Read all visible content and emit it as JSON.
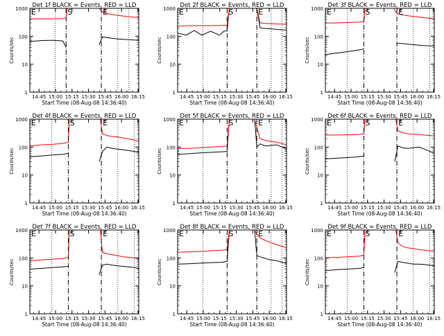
{
  "figure": {
    "ylabel": "Counts/sec",
    "xlabel": "Start Time (08-Aug-08 14:36:40)",
    "x_ticks": [
      "14:45",
      "15:00",
      "15:15",
      "15:30",
      "15:45",
      "16:00",
      "16:15"
    ],
    "y_ticks": [
      "1",
      "10",
      "100",
      "1000"
    ],
    "marker_labels": [
      "E",
      "S",
      "E"
    ],
    "colors": {
      "events": "#000000",
      "lld": "#ff0000",
      "markers": "#000000"
    }
  },
  "chart_data": [
    {
      "type": "line",
      "panel": "Det 1f",
      "title": "Det 1f BLACK = Events, RED = LLD",
      "x_unit": "minutes after 14:36:40",
      "ylim": [
        1,
        1000
      ],
      "log_y": true,
      "markers": [
        {
          "label": "E",
          "x": 0,
          "style": "dotted"
        },
        {
          "label": "S",
          "x": 33,
          "style": "dashed"
        },
        {
          "label": "E",
          "x": 65,
          "style": "dashed"
        }
      ],
      "dotted_lines": [
        0,
        23,
        33,
        65,
        80,
        90
      ],
      "series": [
        {
          "name": "Events",
          "color": "#000000",
          "x": [
            0,
            10,
            20,
            30,
            33,
            36,
            40,
            45,
            50,
            55,
            60,
            63,
            66,
            70,
            75,
            80,
            85,
            90,
            95,
            99
          ],
          "y": [
            65,
            70,
            72,
            68,
            40,
            null,
            null,
            null,
            null,
            null,
            null,
            50,
            95,
            90,
            85,
            80,
            78,
            75,
            73,
            72
          ]
        },
        {
          "name": "LLD",
          "color": "#ff0000",
          "x": [
            0,
            10,
            20,
            30,
            33,
            34,
            36,
            62,
            63,
            66,
            70,
            75,
            80,
            85,
            90,
            95,
            99
          ],
          "y": [
            420,
            420,
            420,
            430,
            450,
            1000,
            1000,
            1000,
            1000,
            750,
            650,
            600,
            560,
            530,
            500,
            480,
            470
          ]
        }
      ]
    },
    {
      "type": "line",
      "panel": "Det 2f",
      "title": "Det 2f BLACK = Events, RED = LLD",
      "x_unit": "minutes after 14:36:40",
      "ylim": [
        1,
        1000
      ],
      "log_y": true,
      "markers": [
        {
          "label": "E",
          "x": 0,
          "style": "dotted"
        },
        {
          "label": "S",
          "x": 45,
          "style": "dashed"
        },
        {
          "label": "E",
          "x": 72,
          "style": "dashed"
        }
      ],
      "dotted_lines": [
        0,
        23,
        45,
        72,
        85,
        95
      ],
      "series": [
        {
          "name": "Events",
          "color": "#000000",
          "x": [
            0,
            8,
            15,
            22,
            30,
            38,
            42,
            45,
            47,
            50,
            70,
            72,
            75,
            80,
            85,
            90,
            95,
            99
          ],
          "y": [
            130,
            110,
            160,
            110,
            150,
            110,
            150,
            160,
            1000,
            1000,
            1000,
            1000,
            200,
            190,
            185,
            175,
            170,
            165
          ]
        },
        {
          "name": "LLD",
          "color": "#ff0000",
          "x": [
            0,
            10,
            20,
            30,
            40,
            45,
            47,
            50,
            70,
            72,
            75,
            80,
            85,
            90,
            95,
            99
          ],
          "y": [
            230,
            240,
            240,
            240,
            245,
            250,
            1000,
            1000,
            1000,
            1000,
            300,
            290,
            280,
            275,
            270,
            265
          ]
        }
      ]
    },
    {
      "type": "line",
      "panel": "Det 3f",
      "title": "Det 3f BLACK = Events, RED = LLD",
      "x_unit": "minutes after 14:36:40",
      "ylim": [
        1,
        1000
      ],
      "log_y": true,
      "markers": [
        {
          "label": "E",
          "x": 0,
          "style": "dotted"
        },
        {
          "label": "S",
          "x": 35,
          "style": "dashed"
        },
        {
          "label": "E",
          "x": 65,
          "style": "dashed"
        }
      ],
      "dotted_lines": [
        0,
        20,
        35,
        65,
        80,
        95
      ],
      "series": [
        {
          "name": "Events",
          "color": "#000000",
          "x": [
            0,
            10,
            20,
            30,
            35,
            36,
            62,
            65,
            70,
            75,
            80,
            85,
            90,
            95,
            99
          ],
          "y": [
            22,
            25,
            28,
            32,
            35,
            null,
            null,
            55,
            55,
            52,
            50,
            48,
            46,
            45,
            45
          ]
        },
        {
          "name": "LLD",
          "color": "#ff0000",
          "x": [
            0,
            10,
            20,
            30,
            35,
            36,
            62,
            65,
            70,
            75,
            80,
            85,
            90,
            95,
            99
          ],
          "y": [
            300,
            300,
            310,
            320,
            330,
            1000,
            1000,
            650,
            580,
            540,
            510,
            490,
            460,
            440,
            420
          ]
        }
      ]
    },
    {
      "type": "line",
      "panel": "Det 4f",
      "title": "Det 4f BLACK = Events, RED = LLD",
      "x_unit": "minutes after 14:36:40",
      "ylim": [
        1,
        1000
      ],
      "log_y": true,
      "markers": [
        {
          "label": "E",
          "x": 0,
          "style": "dotted"
        },
        {
          "label": "S",
          "x": 35,
          "style": "dashed"
        },
        {
          "label": "E",
          "x": 65,
          "style": "dashed"
        }
      ],
      "dotted_lines": [
        0,
        20,
        35,
        65,
        80,
        95
      ],
      "series": [
        {
          "name": "Events",
          "color": "#000000",
          "x": [
            0,
            10,
            20,
            30,
            35,
            36,
            62,
            63,
            66,
            70,
            75,
            80,
            85,
            90,
            95,
            99
          ],
          "y": [
            45,
            48,
            52,
            55,
            60,
            null,
            null,
            30,
            70,
            100,
            90,
            85,
            80,
            75,
            70,
            65
          ]
        },
        {
          "name": "LLD",
          "color": "#ff0000",
          "x": [
            0,
            10,
            20,
            30,
            35,
            36,
            62,
            64,
            66,
            70,
            75,
            80,
            85,
            90,
            95,
            99
          ],
          "y": [
            110,
            120,
            125,
            135,
            150,
            1000,
            1000,
            1000,
            300,
            260,
            240,
            230,
            210,
            195,
            180,
            160
          ]
        }
      ]
    },
    {
      "type": "line",
      "panel": "Det 5f",
      "title": "Det 5f BLACK = Events, RED = LLD",
      "x_unit": "minutes after 14:36:40",
      "ylim": [
        1,
        1000
      ],
      "log_y": true,
      "markers": [
        {
          "label": "E",
          "x": 0,
          "style": "dotted"
        },
        {
          "label": "S",
          "x": 45,
          "style": "dashed"
        },
        {
          "label": "E",
          "x": 72,
          "style": "dashed"
        }
      ],
      "dotted_lines": [
        0,
        23,
        45,
        72,
        85,
        95
      ],
      "series": [
        {
          "name": "Events",
          "color": "#000000",
          "x": [
            0,
            10,
            20,
            30,
            40,
            45,
            47,
            52,
            58,
            62,
            66,
            70,
            72,
            75,
            80,
            85,
            90,
            95,
            99
          ],
          "y": [
            55,
            58,
            62,
            65,
            68,
            70,
            1000,
            1000,
            1000,
            1000,
            1000,
            1000,
            100,
            130,
            110,
            115,
            120,
            100,
            85
          ]
        },
        {
          "name": "LLD",
          "color": "#ff0000",
          "x": [
            0,
            10,
            20,
            30,
            40,
            45,
            47,
            52,
            58,
            62,
            66,
            70,
            72,
            75,
            80,
            85,
            90,
            95,
            99
          ],
          "y": [
            90,
            90,
            95,
            100,
            105,
            110,
            1000,
            1000,
            1000,
            1000,
            1000,
            1000,
            500,
            200,
            170,
            160,
            150,
            135,
            120
          ]
        }
      ]
    },
    {
      "type": "line",
      "panel": "Det 6f",
      "title": "Det 6f BLACK = Events, RED = LLD",
      "x_unit": "minutes after 14:36:40",
      "ylim": [
        1,
        1000
      ],
      "log_y": true,
      "markers": [
        {
          "label": "E",
          "x": 0,
          "style": "dotted"
        },
        {
          "label": "S",
          "x": 35,
          "style": "dashed"
        },
        {
          "label": "E",
          "x": 65,
          "style": "dashed"
        }
      ],
      "dotted_lines": [
        0,
        20,
        35,
        65,
        80,
        95
      ],
      "series": [
        {
          "name": "Events",
          "color": "#000000",
          "x": [
            0,
            10,
            20,
            30,
            35,
            36,
            62,
            63,
            66,
            70,
            75,
            80,
            85,
            90,
            95,
            99
          ],
          "y": [
            38,
            40,
            42,
            45,
            48,
            null,
            null,
            30,
            110,
            95,
            90,
            95,
            100,
            85,
            70,
            60
          ]
        },
        {
          "name": "LLD",
          "color": "#ff0000",
          "x": [
            0,
            10,
            20,
            30,
            35,
            36,
            62,
            64,
            66,
            70,
            75,
            80,
            85,
            90,
            95,
            99
          ],
          "y": [
            270,
            270,
            275,
            280,
            300,
            1000,
            1000,
            1000,
            380,
            330,
            300,
            290,
            280,
            270,
            260,
            250
          ]
        }
      ]
    },
    {
      "type": "line",
      "panel": "Det 7f",
      "title": "Det 7f BLACK = Events, RED = LLD",
      "x_unit": "minutes after 14:36:40",
      "ylim": [
        1,
        1000
      ],
      "log_y": true,
      "markers": [
        {
          "label": "E",
          "x": 0,
          "style": "dotted"
        },
        {
          "label": "S",
          "x": 35,
          "style": "dashed"
        },
        {
          "label": "E",
          "x": 65,
          "style": "dashed"
        }
      ],
      "dotted_lines": [
        0,
        20,
        35,
        65,
        80,
        95
      ],
      "series": [
        {
          "name": "Events",
          "color": "#000000",
          "x": [
            0,
            10,
            20,
            30,
            35,
            36,
            62,
            63,
            66,
            70,
            75,
            80,
            85,
            90,
            95,
            99
          ],
          "y": [
            40,
            42,
            45,
            48,
            50,
            null,
            null,
            25,
            55,
            60,
            55,
            52,
            50,
            48,
            45,
            42
          ]
        },
        {
          "name": "LLD",
          "color": "#ff0000",
          "x": [
            0,
            10,
            20,
            30,
            35,
            36,
            62,
            64,
            66,
            70,
            75,
            80,
            85,
            90,
            95,
            99
          ],
          "y": [
            80,
            85,
            90,
            95,
            105,
            1000,
            1000,
            1000,
            160,
            140,
            130,
            120,
            110,
            105,
            100,
            95
          ]
        }
      ]
    },
    {
      "type": "line",
      "panel": "Det 8f",
      "title": "Det 8f BLACK = Events, RED = LLD",
      "x_unit": "minutes after 14:36:40",
      "ylim": [
        1,
        1000
      ],
      "log_y": true,
      "markers": [
        {
          "label": "E",
          "x": 0,
          "style": "dotted"
        },
        {
          "label": "S",
          "x": 45,
          "style": "dashed"
        },
        {
          "label": "E",
          "x": 72,
          "style": "dashed"
        }
      ],
      "dotted_lines": [
        0,
        23,
        45,
        72,
        85,
        95
      ],
      "series": [
        {
          "name": "Events",
          "color": "#000000",
          "x": [
            0,
            10,
            20,
            30,
            40,
            45,
            47,
            52,
            58,
            62,
            66,
            70,
            72,
            75,
            80,
            85,
            90,
            95,
            99
          ],
          "y": [
            60,
            62,
            65,
            68,
            70,
            75,
            1000,
            1000,
            1000,
            1000,
            1000,
            1000,
            120,
            110,
            95,
            85,
            80,
            70,
            65
          ]
        },
        {
          "name": "LLD",
          "color": "#ff0000",
          "x": [
            0,
            10,
            20,
            30,
            40,
            45,
            47,
            52,
            58,
            62,
            66,
            70,
            72,
            75,
            80,
            85,
            90,
            95,
            99
          ],
          "y": [
            160,
            165,
            170,
            180,
            190,
            200,
            1000,
            1000,
            1000,
            1000,
            1000,
            1000,
            700,
            520,
            420,
            350,
            300,
            260,
            230
          ]
        }
      ]
    },
    {
      "type": "line",
      "panel": "Det 9f",
      "title": "Det 9f BLACK = Events, RED = LLD",
      "x_unit": "minutes after 14:36:40",
      "ylim": [
        1,
        1000
      ],
      "log_y": true,
      "markers": [
        {
          "label": "E",
          "x": 0,
          "style": "dotted"
        },
        {
          "label": "S",
          "x": 35,
          "style": "dashed"
        },
        {
          "label": "E",
          "x": 65,
          "style": "dashed"
        }
      ],
      "dotted_lines": [
        0,
        20,
        35,
        65,
        80,
        95
      ],
      "series": [
        {
          "name": "Events",
          "color": "#000000",
          "x": [
            0,
            10,
            20,
            30,
            35,
            36,
            62,
            63,
            66,
            70,
            75,
            80,
            85,
            90,
            95,
            99
          ],
          "y": [
            35,
            38,
            40,
            42,
            45,
            null,
            null,
            30,
            75,
            70,
            65,
            60,
            60,
            58,
            55,
            52
          ]
        },
        {
          "name": "LLD",
          "color": "#ff0000",
          "x": [
            0,
            10,
            20,
            30,
            35,
            36,
            62,
            64,
            66,
            70,
            75,
            80,
            85,
            90,
            95,
            99
          ],
          "y": [
            100,
            105,
            110,
            115,
            125,
            1000,
            1000,
            1000,
            350,
            260,
            230,
            215,
            200,
            190,
            180,
            170
          ]
        }
      ]
    }
  ]
}
